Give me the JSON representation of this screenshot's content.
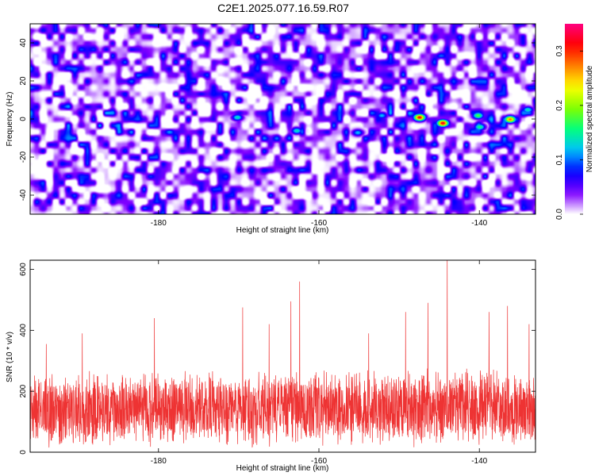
{
  "title": "C2E1.2025.077.16.59.R07",
  "chart_data": [
    {
      "type": "heatmap",
      "xlabel": "Height of straight line (km)",
      "ylabel": "Frequency (Hz)",
      "xlim": [
        -196,
        -133
      ],
      "ylim": [
        -50,
        50
      ],
      "xticks": [
        -180,
        -160,
        -140
      ],
      "yticks": [
        -40,
        -20,
        0,
        20,
        40
      ],
      "xtick_labels": [
        "-180",
        "-160",
        "-140"
      ],
      "ytick_labels": [
        "-40",
        "-20",
        "0",
        "20",
        "40"
      ],
      "colorbar": {
        "label": "Normalized spectral amplitude",
        "range": [
          0.0,
          0.35
        ],
        "ticks": [
          0.0,
          0.1,
          0.2,
          0.3
        ],
        "tick_labels": [
          "0.0",
          "0.1",
          "0.2",
          "0.3"
        ],
        "colors": [
          "#ffffff",
          "#8000ff",
          "#0000ff",
          "#00c0ff",
          "#00ff80",
          "#80ff00",
          "#ffff00",
          "#ff8000",
          "#ff0000",
          "#ff0080"
        ]
      },
      "hotspots": [
        {
          "x": -147.5,
          "y": 1.0,
          "value": 0.32
        },
        {
          "x": -144.6,
          "y": -2.0,
          "value": 0.33
        },
        {
          "x": -136.2,
          "y": 0.0,
          "value": 0.28
        },
        {
          "x": -140.2,
          "y": 2.0,
          "value": 0.18
        },
        {
          "x": -140.0,
          "y": -4.0,
          "value": 0.16
        },
        {
          "x": -170.2,
          "y": 1.0,
          "value": 0.14
        },
        {
          "x": -162.8,
          "y": -6.0,
          "value": 0.14
        },
        {
          "x": -134.0,
          "y": 5.0,
          "value": 0.14
        },
        {
          "x": -155.2,
          "y": -7.0,
          "value": 0.12
        },
        {
          "x": -152.2,
          "y": 2.0,
          "value": 0.12
        }
      ]
    },
    {
      "type": "line",
      "xlabel": "Height of straight line (km)",
      "ylabel": "SNR (10 * v/v)",
      "xlim": [
        -196,
        -133
      ],
      "ylim": [
        0,
        630
      ],
      "xticks": [
        -180,
        -160,
        -140
      ],
      "yticks": [
        0,
        200,
        400,
        600
      ],
      "xtick_labels": [
        "-180",
        "-160",
        "-140"
      ],
      "ytick_labels": [
        "0",
        "200",
        "400",
        "600"
      ],
      "color": "#ee3333",
      "baseline_mean": 140,
      "noise_range": [
        30,
        290
      ],
      "peaks": [
        {
          "x": -194.0,
          "y": 355
        },
        {
          "x": -189.5,
          "y": 390
        },
        {
          "x": -180.5,
          "y": 440
        },
        {
          "x": -169.5,
          "y": 475
        },
        {
          "x": -166.2,
          "y": 420
        },
        {
          "x": -163.5,
          "y": 495
        },
        {
          "x": -162.4,
          "y": 560
        },
        {
          "x": -153.8,
          "y": 390
        },
        {
          "x": -149.2,
          "y": 460
        },
        {
          "x": -146.4,
          "y": 490
        },
        {
          "x": -144.0,
          "y": 630
        },
        {
          "x": -138.8,
          "y": 460
        },
        {
          "x": -136.5,
          "y": 480
        },
        {
          "x": -133.8,
          "y": 420
        }
      ]
    }
  ]
}
